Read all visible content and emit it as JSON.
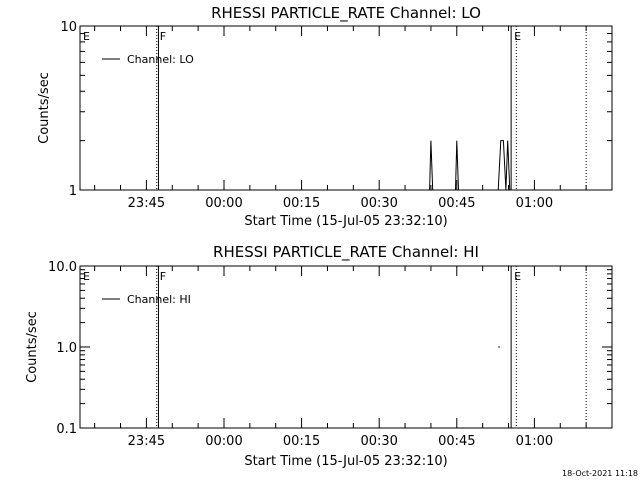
{
  "timestamp": "18-Oct-2021 11:18",
  "chart_data": [
    {
      "type": "line",
      "title": "RHESSI PARTICLE_RATE Channel: LO",
      "xlabel": "Start Time (15-Jul-05 23:32:10)",
      "ylabel": "Counts/sec",
      "yscale": "log",
      "ylim": [
        1,
        10
      ],
      "ytick_labels": [
        "1",
        "10"
      ],
      "xlim": [
        "23:32:10",
        "01:15:00"
      ],
      "xtick_labels": [
        "23:45",
        "00:00",
        "00:15",
        "00:30",
        "00:45",
        "01:00"
      ],
      "legend": {
        "placement": "top-left",
        "entries": [
          "Channel: LO"
        ]
      },
      "flags": [
        {
          "label": "E",
          "time": "23:32:10",
          "style": "solid"
        },
        {
          "label": "F",
          "time": "23:47:00",
          "style": "dotted"
        },
        {
          "label": "",
          "time": "23:47:20",
          "style": "solid"
        },
        {
          "label": "E",
          "time": "00:55:30",
          "style": "solid"
        },
        {
          "label": "",
          "time": "00:56:30",
          "style": "dotted"
        },
        {
          "label": "",
          "time": "01:10:00",
          "style": "dotted"
        }
      ],
      "series": [
        {
          "name": "Channel: LO",
          "segments": [
            {
              "x": [
                "00:39:45",
                "00:40:00",
                "00:40:20"
              ],
              "y": [
                1,
                2,
                1
              ]
            },
            {
              "x": [
                "00:44:45",
                "00:45:00",
                "00:45:20"
              ],
              "y": [
                1,
                2,
                1
              ]
            },
            {
              "x": [
                "00:53:00",
                "00:53:30",
                "00:54:00",
                "00:54:30",
                "00:54:50",
                "00:55:15"
              ],
              "y": [
                1,
                2,
                2,
                1,
                2,
                1
              ]
            }
          ]
        }
      ]
    },
    {
      "type": "line",
      "title": "RHESSI PARTICLE_RATE Channel: HI",
      "xlabel": "Start Time (15-Jul-05 23:32:10)",
      "ylabel": "Counts/sec",
      "yscale": "log",
      "ylim": [
        0.1,
        10
      ],
      "ytick_labels": [
        "0.1",
        "1.0",
        "10.0"
      ],
      "xlim": [
        "23:32:10",
        "01:15:00"
      ],
      "xtick_labels": [
        "23:45",
        "00:00",
        "00:15",
        "00:30",
        "00:45",
        "01:00"
      ],
      "legend": {
        "placement": "top-left",
        "entries": [
          "Channel: HI"
        ]
      },
      "flags": [
        {
          "label": "E",
          "time": "23:32:10",
          "style": "solid"
        },
        {
          "label": "F",
          "time": "23:47:00",
          "style": "dotted"
        },
        {
          "label": "",
          "time": "23:47:20",
          "style": "solid"
        },
        {
          "label": "E",
          "time": "00:55:30",
          "style": "solid"
        },
        {
          "label": "",
          "time": "00:56:30",
          "style": "dotted"
        },
        {
          "label": "",
          "time": "01:10:00",
          "style": "dotted"
        }
      ],
      "series": [
        {
          "name": "Channel: HI",
          "segments": [
            {
              "x": [
                "00:53:00",
                "00:53:20"
              ],
              "y": [
                1,
                1
              ]
            }
          ]
        }
      ]
    }
  ]
}
